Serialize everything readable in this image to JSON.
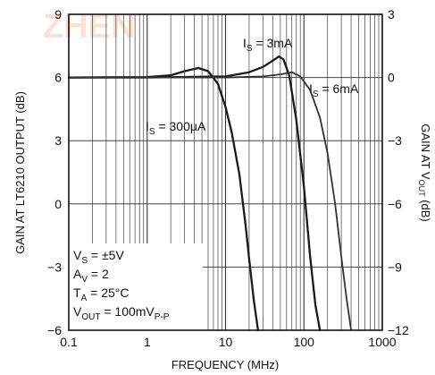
{
  "chart_data": {
    "type": "line",
    "xlabel": "FREQUENCY (MHz)",
    "ylabel_left": "GAIN AT LT6210 OUTPUT (dB)",
    "ylabel_right_main": "GAIN AT V",
    "ylabel_right_sub": "OUT",
    "ylabel_right_tail": " (dB)",
    "x_scale": "log",
    "xlim": [
      0.1,
      1000
    ],
    "ylim_left": [
      -6,
      9
    ],
    "ylim_right": [
      -12,
      3
    ],
    "x_ticks": [
      {
        "value": 0.1,
        "label": "0.1"
      },
      {
        "value": 1,
        "label": "1"
      },
      {
        "value": 10,
        "label": "10"
      },
      {
        "value": 100,
        "label": "100"
      },
      {
        "value": 1000,
        "label": "1000"
      }
    ],
    "y_ticks_left": [
      {
        "value": 9,
        "label": "9"
      },
      {
        "value": 6,
        "label": "6"
      },
      {
        "value": 3,
        "label": "3"
      },
      {
        "value": 0,
        "label": "0"
      },
      {
        "value": -3,
        "label": "−3"
      },
      {
        "value": -6,
        "label": "−6"
      }
    ],
    "y_ticks_right": [
      {
        "value": 3,
        "label": "3"
      },
      {
        "value": 0,
        "label": "0"
      },
      {
        "value": -3,
        "label": "−3"
      },
      {
        "value": -6,
        "label": "−6"
      },
      {
        "value": -9,
        "label": "−9"
      },
      {
        "value": -12,
        "label": "−12"
      }
    ],
    "grid": "on",
    "series": [
      {
        "name": "IS = 300μA",
        "label_main": "I",
        "label_sub": "S",
        "label_tail": " = 300μA",
        "points": [
          [
            0.1,
            6
          ],
          [
            1,
            6.02
          ],
          [
            2,
            6.1
          ],
          [
            3,
            6.3
          ],
          [
            4.5,
            6.45
          ],
          [
            6,
            6.3
          ],
          [
            8,
            5.7
          ],
          [
            10,
            4.6
          ],
          [
            12,
            3.4
          ],
          [
            15,
            1.4
          ],
          [
            18,
            -1
          ],
          [
            20,
            -2.6
          ],
          [
            23,
            -4.6
          ],
          [
            26,
            -6
          ]
        ]
      },
      {
        "name": "IS = 3mA",
        "label_main": "I",
        "label_sub": "S",
        "label_tail": " = 3mA",
        "points": [
          [
            0.1,
            6
          ],
          [
            1,
            6
          ],
          [
            10,
            6.05
          ],
          [
            20,
            6.25
          ],
          [
            30,
            6.5
          ],
          [
            40,
            6.8
          ],
          [
            48,
            7
          ],
          [
            55,
            6.85
          ],
          [
            65,
            6.1
          ],
          [
            80,
            4
          ],
          [
            100,
            0.8
          ],
          [
            120,
            -2.5
          ],
          [
            140,
            -4.8
          ],
          [
            160,
            -6
          ]
        ]
      },
      {
        "name": "IS = 6mA",
        "label_main": "I",
        "label_sub": "S",
        "label_tail": " = 6mA",
        "points": [
          [
            0.1,
            6
          ],
          [
            1,
            6
          ],
          [
            10,
            6
          ],
          [
            30,
            6.05
          ],
          [
            50,
            6.15
          ],
          [
            70,
            6.25
          ],
          [
            90,
            6.05
          ],
          [
            120,
            5.4
          ],
          [
            160,
            4.1
          ],
          [
            200,
            2.4
          ],
          [
            250,
            0
          ],
          [
            300,
            -2.5
          ],
          [
            350,
            -4.5
          ],
          [
            400,
            -6
          ]
        ]
      }
    ],
    "conditions": [
      {
        "main": "V",
        "sub": "S",
        "tail": " = ±5V"
      },
      {
        "main": "A",
        "sub": "V",
        "tail": " = 2"
      },
      {
        "main": "T",
        "sub": "A",
        "tail": " = 25°C"
      },
      {
        "main": "V",
        "sub": "OUT",
        "tail": " = 100mV",
        "sub2": "P-P"
      }
    ],
    "watermark": "ZHEN"
  }
}
